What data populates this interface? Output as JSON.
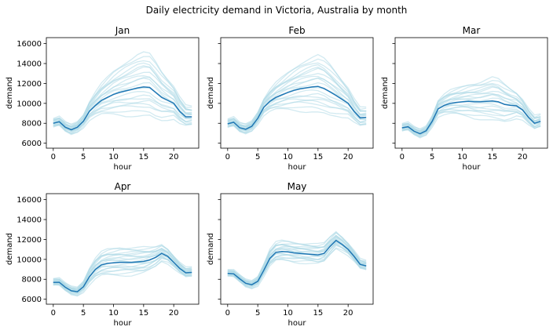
{
  "figure": {
    "title": "Daily electricity demand in Victoria, Australia by month"
  },
  "colors": {
    "background_lines": "#add8e6",
    "mean_line": "#1f77b4"
  },
  "chart_data": {
    "type": "line",
    "title": "Daily electricity demand in Victoria, Australia by month",
    "shared_y": true,
    "grid": false,
    "x": [
      0,
      1,
      2,
      3,
      4,
      5,
      6,
      7,
      8,
      9,
      10,
      11,
      12,
      13,
      14,
      15,
      16,
      17,
      18,
      19,
      20,
      21,
      22,
      23
    ],
    "xlabel": "hour",
    "ylabel": "demand",
    "xlim": [
      -1.15,
      24.15
    ],
    "ylim": [
      5500,
      16600
    ],
    "xticks": [
      0,
      5,
      10,
      15,
      20
    ],
    "yticks": [
      6000,
      8000,
      10000,
      12000,
      14000,
      16000
    ],
    "panels": [
      {
        "title": "Jan",
        "mean": [
          8000,
          8150,
          7600,
          7350,
          7600,
          8200,
          9200,
          9800,
          10300,
          10600,
          10900,
          11100,
          11250,
          11400,
          11550,
          11650,
          11600,
          11100,
          10600,
          10300,
          10000,
          9200,
          8650,
          8650
        ],
        "daily_lines": {
          "spread": [
            400,
            420,
            440,
            460,
            480,
            600,
            900,
            1200,
            1500,
            1800,
            2100,
            2350,
            2600,
            2800,
            3000,
            3100,
            3050,
            2800,
            2400,
            2000,
            1600,
            1300,
            1000,
            900
          ],
          "offsets": [
            -0.95,
            -0.8,
            -0.62,
            -0.45,
            -0.3,
            -0.15,
            0,
            0.12,
            0.25,
            0.38,
            0.5,
            0.62,
            0.75,
            0.88,
            1.0,
            1.1,
            -0.55,
            -0.35,
            0.3,
            0.65
          ]
        }
      },
      {
        "title": "Feb",
        "mean": [
          7950,
          8100,
          7550,
          7400,
          7700,
          8500,
          9600,
          10200,
          10600,
          10850,
          11100,
          11300,
          11450,
          11550,
          11650,
          11700,
          11500,
          11150,
          10800,
          10400,
          10000,
          9200,
          8550,
          8600
        ],
        "daily_lines": {
          "spread": [
            400,
            420,
            420,
            440,
            460,
            560,
            800,
            1050,
            1300,
            1550,
            1800,
            2050,
            2300,
            2500,
            2650,
            2800,
            2700,
            2500,
            2150,
            1800,
            1450,
            1150,
            900,
            850
          ],
          "offsets": [
            -0.95,
            -0.8,
            -0.62,
            -0.45,
            -0.3,
            -0.15,
            0,
            0.12,
            0.25,
            0.38,
            0.5,
            0.62,
            0.75,
            0.88,
            1.0,
            1.1,
            -0.55,
            -0.35,
            0.3,
            0.65
          ]
        }
      },
      {
        "title": "Mar",
        "mean": [
          7550,
          7650,
          7200,
          6950,
          7250,
          8200,
          9450,
          9800,
          10000,
          10100,
          10150,
          10200,
          10150,
          10150,
          10200,
          10250,
          10150,
          9900,
          9800,
          9750,
          9350,
          8600,
          8000,
          8200
        ],
        "daily_lines": {
          "spread": [
            350,
            360,
            360,
            380,
            400,
            520,
            800,
            1000,
            1150,
            1250,
            1400,
            1550,
            1700,
            1800,
            1950,
            2100,
            2050,
            1850,
            1550,
            1250,
            1000,
            800,
            650,
            600
          ],
          "offsets": [
            -0.95,
            -0.8,
            -0.62,
            -0.45,
            -0.3,
            -0.15,
            0,
            0.12,
            0.25,
            0.38,
            0.5,
            0.62,
            0.75,
            0.88,
            1.0,
            1.1,
            -0.55,
            -0.35,
            0.3,
            0.65
          ]
        }
      },
      {
        "title": "Apr",
        "mean": [
          7700,
          7700,
          7200,
          6850,
          6750,
          7250,
          8250,
          9000,
          9450,
          9600,
          9650,
          9700,
          9700,
          9700,
          9750,
          9800,
          9950,
          10200,
          10600,
          10300,
          9700,
          9100,
          8650,
          8700
        ],
        "daily_lines": {
          "spread": [
            300,
            320,
            340,
            360,
            380,
            500,
            800,
            1000,
            1150,
            1250,
            1300,
            1350,
            1350,
            1350,
            1300,
            1250,
            1100,
            950,
            800,
            700,
            600,
            520,
            450,
            420
          ],
          "offsets": [
            -0.95,
            -0.8,
            -0.62,
            -0.45,
            -0.3,
            -0.15,
            0,
            0.12,
            0.25,
            0.38,
            0.5,
            0.62,
            0.75,
            0.88,
            1.0,
            1.1,
            -0.55,
            -0.35,
            0.3,
            0.65
          ]
        }
      },
      {
        "title": "May",
        "mean": [
          8600,
          8550,
          8050,
          7600,
          7450,
          7800,
          8900,
          10100,
          10700,
          10800,
          10750,
          10650,
          10600,
          10550,
          10500,
          10450,
          10600,
          11300,
          11900,
          11500,
          11000,
          10300,
          9500,
          9350
        ],
        "daily_lines": {
          "spread": [
            300,
            300,
            300,
            320,
            340,
            420,
            600,
            800,
            900,
            950,
            950,
            950,
            950,
            950,
            950,
            950,
            900,
            850,
            800,
            700,
            600,
            520,
            450,
            420
          ],
          "offsets": [
            -0.95,
            -0.8,
            -0.62,
            -0.45,
            -0.3,
            -0.15,
            0,
            0.12,
            0.25,
            0.38,
            0.5,
            0.62,
            0.75,
            0.88,
            1.0,
            1.1,
            -0.55,
            -0.35,
            0.3,
            0.65
          ]
        }
      }
    ]
  }
}
